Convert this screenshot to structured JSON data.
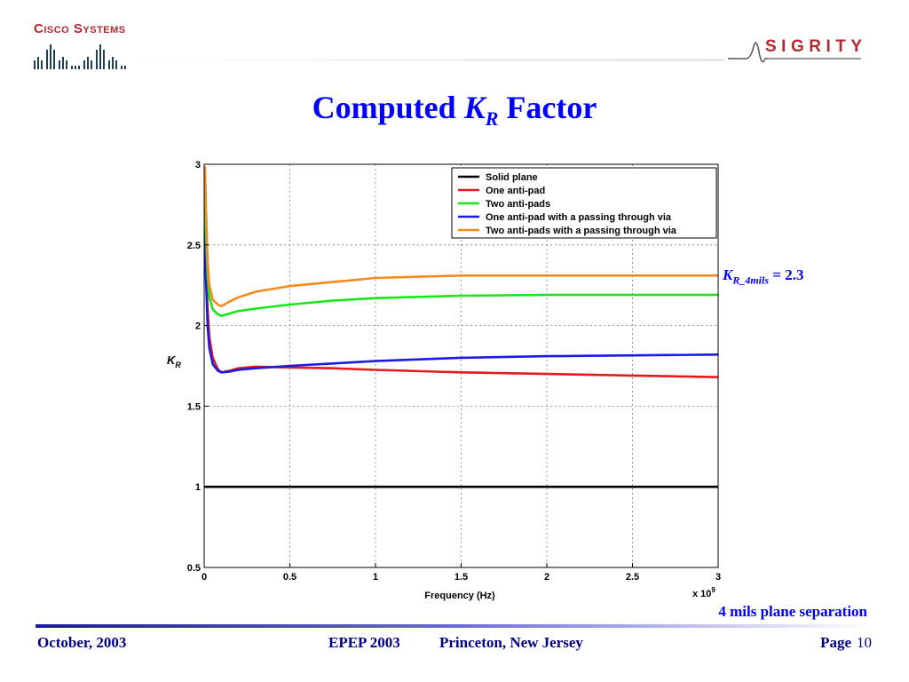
{
  "header": {
    "cisco_logo_text": "Cisco Systems",
    "sigrity_logo_text": "SIGRITY"
  },
  "title": {
    "prefix": "Computed ",
    "symbol": "K",
    "subscript": "R",
    "suffix": " Factor"
  },
  "annotation": {
    "symbol": "K",
    "subscript": "R_4mils",
    "value_text": " = 2.3"
  },
  "note": "4 mils plane separation",
  "footer": {
    "date": "October, 2003",
    "conference": "EPEP 2003",
    "location": "Princeton, New Jersey",
    "page_label": "Page",
    "page_number": "10"
  },
  "chart_data": {
    "type": "line",
    "xlabel": "Frequency (Hz)",
    "ylabel": "K",
    "ylabel_sub": "R",
    "x_exponent_label": "x 10",
    "x_exponent": "9",
    "xlim": [
      0,
      3
    ],
    "ylim": [
      0.5,
      3
    ],
    "x_scale": 1000000000,
    "xticks": [
      0,
      0.5,
      1,
      1.5,
      2,
      2.5,
      3
    ],
    "yticks": [
      0.5,
      1,
      1.5,
      2,
      2.5,
      3
    ],
    "xtick_labels": [
      "0",
      "0.5",
      "1",
      "1.5",
      "2",
      "2.5",
      "3"
    ],
    "ytick_labels": [
      "0.5",
      "1",
      "1.5",
      "2",
      "2.5",
      "3"
    ],
    "grid": true,
    "legend_position": "top-right",
    "series": [
      {
        "name": "Solid plane",
        "color": "#000000",
        "x": [
          0,
          0.5,
          1,
          1.5,
          2,
          2.5,
          3
        ],
        "y": [
          1,
          1,
          1,
          1,
          1,
          1,
          1
        ]
      },
      {
        "name": "One anti-pad",
        "color": "#e41a1c",
        "x": [
          0.005,
          0.01,
          0.02,
          0.03,
          0.05,
          0.08,
          0.1,
          0.15,
          0.2,
          0.3,
          0.5,
          0.75,
          1.0,
          1.5,
          2.0,
          2.5,
          3.0
        ],
        "y": [
          2.6,
          2.35,
          2.1,
          1.93,
          1.8,
          1.73,
          1.71,
          1.72,
          1.735,
          1.745,
          1.74,
          1.735,
          1.725,
          1.71,
          1.7,
          1.69,
          1.68
        ]
      },
      {
        "name": "Two anti-pads",
        "color": "#19e619",
        "x": [
          0.005,
          0.01,
          0.02,
          0.03,
          0.05,
          0.08,
          0.1,
          0.15,
          0.2,
          0.3,
          0.5,
          0.75,
          1.0,
          1.5,
          2.0,
          2.5,
          3.0
        ],
        "y": [
          2.95,
          2.6,
          2.3,
          2.18,
          2.1,
          2.07,
          2.06,
          2.075,
          2.09,
          2.105,
          2.13,
          2.155,
          2.17,
          2.185,
          2.19,
          2.19,
          2.19
        ]
      },
      {
        "name": "One anti-pad with a passing through via",
        "color": "#1a1ae6",
        "x": [
          0.005,
          0.01,
          0.02,
          0.03,
          0.05,
          0.08,
          0.1,
          0.15,
          0.2,
          0.3,
          0.5,
          0.75,
          1.0,
          1.5,
          2.0,
          2.5,
          3.0
        ],
        "y": [
          2.65,
          2.3,
          2.0,
          1.86,
          1.76,
          1.72,
          1.71,
          1.715,
          1.725,
          1.735,
          1.75,
          1.765,
          1.78,
          1.8,
          1.81,
          1.815,
          1.82
        ]
      },
      {
        "name": "Two anti-pads with a passing through via",
        "color": "#f28a1e",
        "x": [
          0.005,
          0.01,
          0.02,
          0.03,
          0.05,
          0.08,
          0.1,
          0.15,
          0.2,
          0.3,
          0.5,
          0.75,
          1.0,
          1.5,
          2.0,
          2.5,
          3.0
        ],
        "y": [
          2.98,
          2.75,
          2.4,
          2.25,
          2.16,
          2.13,
          2.12,
          2.15,
          2.175,
          2.21,
          2.245,
          2.27,
          2.295,
          2.31,
          2.31,
          2.31,
          2.31
        ]
      }
    ]
  }
}
